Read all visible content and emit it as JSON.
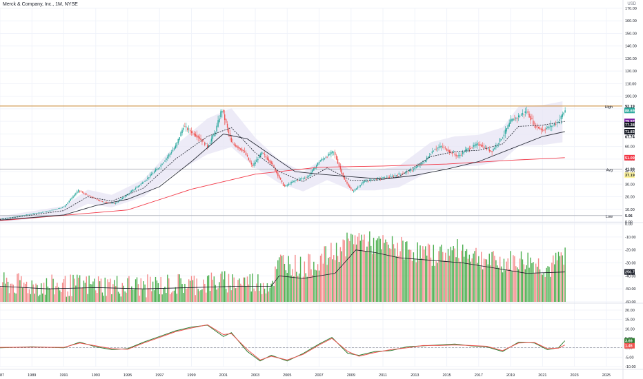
{
  "header": {
    "title": "Merck & Company, Inc., 1M, NYSE",
    "currency": "USD"
  },
  "colors": {
    "up": "#26a69a",
    "up_bar": "#4caf50",
    "down": "#ef5350",
    "down_vol": "#f48a8a",
    "ma_long": "#f23645",
    "ma_mid": "#2a2e39",
    "bb_fill": "#e9e6f5",
    "high_line": "#c8842c",
    "grid": "#f0f3fa"
  },
  "chart_data": [
    {
      "type": "candlestick",
      "panel": "price",
      "ylim": [
        0,
        170
      ],
      "y_ticks": [
        "170.00",
        "160.00",
        "150.00",
        "140.00",
        "130.00",
        "120.00",
        "110.00",
        "100.00",
        "90.00",
        "80.00",
        "70.00",
        "60.00",
        "50.00",
        "40.00",
        "30.00",
        "20.00",
        "10.00",
        "0.00"
      ],
      "x_ticks": [
        "1987",
        "1989",
        "1991",
        "1993",
        "1995",
        "1997",
        "1999",
        "2001",
        "2003",
        "2005",
        "2007",
        "2009",
        "2011",
        "2013",
        "2015",
        "2017",
        "2019",
        "2021",
        "2023",
        "2025"
      ],
      "x_range": [
        1987,
        2026
      ],
      "price_path": [
        [
          1987.0,
          2.6
        ],
        [
          1988.0,
          4.2
        ],
        [
          1989.0,
          6.5
        ],
        [
          1990.0,
          8.5
        ],
        [
          1991.0,
          12.0
        ],
        [
          1991.9,
          25.0
        ],
        [
          1992.5,
          21.0
        ],
        [
          1993.4,
          16.0
        ],
        [
          1994.2,
          14.5
        ],
        [
          1995.0,
          22.0
        ],
        [
          1996.0,
          32.0
        ],
        [
          1997.0,
          44.0
        ],
        [
          1998.0,
          60.0
        ],
        [
          1998.5,
          76.0
        ],
        [
          1999.4,
          68.0
        ],
        [
          2000.0,
          60.0
        ],
        [
          2000.5,
          72.0
        ],
        [
          2000.9,
          90.0
        ],
        [
          2001.5,
          63.0
        ],
        [
          2002.3,
          56.0
        ],
        [
          2002.8,
          44.0
        ],
        [
          2003.4,
          55.0
        ],
        [
          2004.0,
          47.0
        ],
        [
          2004.8,
          28.0
        ],
        [
          2005.5,
          33.0
        ],
        [
          2006.3,
          36.0
        ],
        [
          2007.0,
          48.0
        ],
        [
          2007.9,
          56.0
        ],
        [
          2008.6,
          33.0
        ],
        [
          2009.1,
          24.0
        ],
        [
          2009.8,
          32.0
        ],
        [
          2010.5,
          34.0
        ],
        [
          2011.5,
          36.0
        ],
        [
          2012.0,
          38.0
        ],
        [
          2012.8,
          41.0
        ],
        [
          2013.6,
          48.0
        ],
        [
          2014.2,
          58.0
        ],
        [
          2014.7,
          60.0
        ],
        [
          2015.7,
          52.0
        ],
        [
          2016.3,
          58.0
        ],
        [
          2017.0,
          62.0
        ],
        [
          2017.8,
          56.0
        ],
        [
          2018.5,
          68.0
        ],
        [
          2019.0,
          80.0
        ],
        [
          2019.5,
          84.0
        ],
        [
          2020.0,
          88.0
        ],
        [
          2020.5,
          77.0
        ],
        [
          2021.0,
          73.0
        ],
        [
          2021.5,
          76.0
        ],
        [
          2021.9,
          79.0
        ],
        [
          2022.1,
          82.0
        ],
        [
          2022.4,
          88.69
        ]
      ],
      "ma_long_path": [
        [
          1987.0,
          1.0
        ],
        [
          1995.0,
          9.5
        ],
        [
          1999.0,
          26.0
        ],
        [
          2003.0,
          38.0
        ],
        [
          2007.0,
          43.5
        ],
        [
          2011.0,
          44.5
        ],
        [
          2015.0,
          46.0
        ],
        [
          2019.0,
          49.0
        ],
        [
          2022.4,
          51.09
        ]
      ],
      "ma_mid_path": [
        [
          1987.0,
          1.5
        ],
        [
          1991.0,
          5.5
        ],
        [
          1993.0,
          13.0
        ],
        [
          1995.0,
          18.0
        ],
        [
          1997.0,
          28.0
        ],
        [
          1999.0,
          48.0
        ],
        [
          2001.0,
          70.0
        ],
        [
          2002.5,
          66.0
        ],
        [
          2004.0,
          53.0
        ],
        [
          2005.5,
          40.0
        ],
        [
          2007.0,
          38.0
        ],
        [
          2009.0,
          36.0
        ],
        [
          2011.0,
          34.0
        ],
        [
          2013.0,
          37.0
        ],
        [
          2015.0,
          42.0
        ],
        [
          2017.0,
          48.0
        ],
        [
          2019.0,
          58.0
        ],
        [
          2021.0,
          68.0
        ],
        [
          2022.4,
          71.83
        ]
      ],
      "ma_short_path": [
        [
          1987.0,
          2.0
        ],
        [
          1991.0,
          9.0
        ],
        [
          1992.5,
          20.0
        ],
        [
          1994.0,
          16.5
        ],
        [
          1996.0,
          27.0
        ],
        [
          1998.0,
          50.0
        ],
        [
          2000.0,
          68.0
        ],
        [
          2001.5,
          75.0
        ],
        [
          2003.0,
          55.0
        ],
        [
          2004.5,
          40.0
        ],
        [
          2006.0,
          32.0
        ],
        [
          2007.5,
          43.0
        ],
        [
          2009.0,
          33.0
        ],
        [
          2010.5,
          33.0
        ],
        [
          2012.0,
          36.0
        ],
        [
          2014.0,
          52.0
        ],
        [
          2015.5,
          56.0
        ],
        [
          2017.0,
          57.0
        ],
        [
          2018.5,
          62.0
        ],
        [
          2019.5,
          76.0
        ],
        [
          2021.0,
          77.0
        ],
        [
          2022.4,
          79.97
        ]
      ],
      "high": {
        "label": "High",
        "value": "92.19",
        "level": 92.19
      },
      "avg": {
        "label": "Avg",
        "value": "41.99",
        "level": 41.99
      },
      "low": {
        "label": "Low",
        "value": "5.06",
        "level": 5.06
      },
      "price_labels": [
        {
          "text": "88.69",
          "level": 88.69,
          "color": "#26a69a"
        },
        {
          "text": "79.97",
          "level": 79.97,
          "color": "#7b1fa2"
        },
        {
          "text": "77.38",
          "level": 77.38,
          "color": "#131722"
        },
        {
          "text": "71.83",
          "level": 71.83,
          "color": "#131722"
        },
        {
          "text": "67.74",
          "level": 67.74,
          "color": null
        },
        {
          "text": "51.09",
          "level": 51.09,
          "color": "#f23645"
        },
        {
          "text": "37.19",
          "level": 37.19,
          "color": "#fff59d"
        }
      ]
    },
    {
      "type": "bar",
      "panel": "volume",
      "ylim": [
        -60,
        0
      ],
      "y_ticks": [
        "0.00",
        "-10.00",
        "-20.00",
        "-30.00",
        "-40.00",
        "-50.00",
        "-60.00"
      ],
      "current_label": "250.713M",
      "ma_path": [
        [
          1987,
          -48
        ],
        [
          1990,
          -50
        ],
        [
          1993,
          -49
        ],
        [
          1996,
          -50
        ],
        [
          1999,
          -49
        ],
        [
          2002,
          -48
        ],
        [
          2004,
          -48
        ],
        [
          2004.5,
          -40
        ],
        [
          2006,
          -42
        ],
        [
          2008,
          -38
        ],
        [
          2009.3,
          -20
        ],
        [
          2010.5,
          -22
        ],
        [
          2012,
          -26
        ],
        [
          2014,
          -28
        ],
        [
          2016,
          -30
        ],
        [
          2018,
          -34
        ],
        [
          2020,
          -38
        ],
        [
          2022.4,
          -37
        ]
      ],
      "level_path": [
        [
          1987,
          -46
        ],
        [
          1990,
          -48
        ],
        [
          1993,
          -47
        ],
        [
          1996,
          -48
        ],
        [
          1999,
          -46
        ],
        [
          2002,
          -44
        ],
        [
          2004,
          -46
        ],
        [
          2004.6,
          -28
        ],
        [
          2006,
          -34
        ],
        [
          2008.3,
          -20
        ],
        [
          2009.3,
          -10
        ],
        [
          2010.5,
          -16
        ],
        [
          2012,
          -18
        ],
        [
          2014,
          -24
        ],
        [
          2016,
          -20
        ],
        [
          2018,
          -30
        ],
        [
          2020,
          -28
        ],
        [
          2021.5,
          -35
        ],
        [
          2022.4,
          -22
        ]
      ]
    },
    {
      "type": "line",
      "panel": "oscillator",
      "ylim": [
        -10,
        20
      ],
      "y_ticks": [
        "20.00",
        "15.00",
        "10.00",
        "5.00",
        "0.00",
        "-5.00",
        "-10.00"
      ],
      "series": [
        {
          "path": [
            [
              1987,
              0
            ],
            [
              1989,
              0.5
            ],
            [
              1991,
              0
            ],
            [
              1992,
              3
            ],
            [
              1993,
              0.5
            ],
            [
              1994,
              -1
            ],
            [
              1995,
              -0.5
            ],
            [
              1996,
              3
            ],
            [
              1997,
              6
            ],
            [
              1998,
              9
            ],
            [
              1999,
              11
            ],
            [
              2000,
              12
            ],
            [
              2001,
              6
            ],
            [
              2001.5,
              8
            ],
            [
              2002.5,
              -2
            ],
            [
              2003.3,
              -7
            ],
            [
              2004,
              -4
            ],
            [
              2005,
              -7
            ],
            [
              2006,
              -3
            ],
            [
              2007,
              2
            ],
            [
              2007.8,
              5.5
            ],
            [
              2008.8,
              -3
            ],
            [
              2009.5,
              -4
            ],
            [
              2010.5,
              -2
            ],
            [
              2011.5,
              -1.5
            ],
            [
              2012.5,
              0.5
            ],
            [
              2013.5,
              1
            ],
            [
              2014.5,
              1.5
            ],
            [
              2015.5,
              2
            ],
            [
              2016.5,
              1
            ],
            [
              2017.5,
              0.5
            ],
            [
              2018.5,
              -2
            ],
            [
              2019.5,
              3
            ],
            [
              2020.5,
              2.5
            ],
            [
              2021.3,
              -1
            ],
            [
              2022,
              0
            ],
            [
              2022.4,
              3.69
            ]
          ]
        },
        {
          "path": [
            [
              1987,
              0.2
            ],
            [
              1989,
              0.3
            ],
            [
              1991,
              0.2
            ],
            [
              1992,
              2.5
            ],
            [
              1993,
              1
            ],
            [
              1994,
              -0.5
            ],
            [
              1995,
              -0.8
            ],
            [
              1996,
              2.5
            ],
            [
              1997,
              5.5
            ],
            [
              1998,
              8.5
            ],
            [
              1999,
              10.5
            ],
            [
              2000,
              12.2
            ],
            [
              2001,
              7
            ],
            [
              2001.5,
              7.5
            ],
            [
              2002.5,
              -1
            ],
            [
              2003.3,
              -6.5
            ],
            [
              2004,
              -4.5
            ],
            [
              2005,
              -6.5
            ],
            [
              2006,
              -3.5
            ],
            [
              2007,
              1.5
            ],
            [
              2007.8,
              5
            ],
            [
              2008.8,
              -2
            ],
            [
              2009.5,
              -4.5
            ],
            [
              2010.5,
              -2.5
            ],
            [
              2011.5,
              -1
            ],
            [
              2012.5,
              0
            ],
            [
              2013.5,
              1.2
            ],
            [
              2014.5,
              1.2
            ],
            [
              2015.5,
              1.5
            ],
            [
              2016.5,
              1.2
            ],
            [
              2017.5,
              0.8
            ],
            [
              2018.5,
              -1.5
            ],
            [
              2019.5,
              2.5
            ],
            [
              2020.5,
              2.8
            ],
            [
              2021.3,
              -0.5
            ],
            [
              2022,
              -0.2
            ],
            [
              2022.4,
              1.45
            ]
          ]
        }
      ],
      "labels": [
        {
          "text": "3.69",
          "level": 3.69
        },
        {
          "text": "1.45",
          "level": 1.45
        }
      ]
    }
  ]
}
